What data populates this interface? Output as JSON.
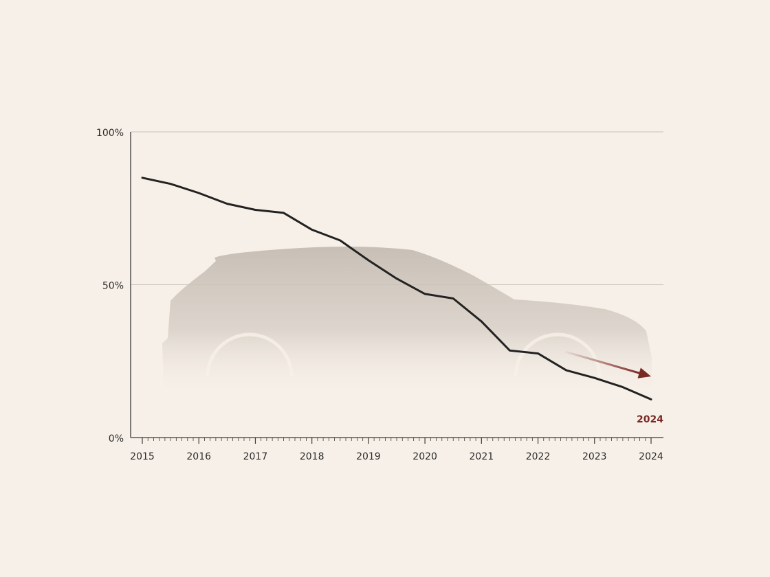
{
  "chart_data": {
    "type": "line",
    "title": "",
    "xlabel": "",
    "ylabel": "",
    "x_ticks": [
      "2015",
      "2016",
      "2017",
      "2018",
      "2019",
      "2020",
      "2021",
      "2022",
      "2023",
      "2024"
    ],
    "y_ticks": [
      "0%",
      "50%",
      "100%"
    ],
    "xlim": [
      2015,
      2024
    ],
    "ylim": [
      0,
      100
    ],
    "grid": true,
    "legend": "none",
    "series": [
      {
        "x": [
          2015.0,
          2015.5,
          2016.0,
          2016.5,
          2017.0,
          2017.5,
          2018.0,
          2018.5,
          2019.0,
          2019.5,
          2020.0,
          2020.5,
          2021.0,
          2021.5,
          2022.0,
          2022.5,
          2023.0,
          2023.5,
          2024.0
        ],
        "values": [
          85,
          83,
          80,
          76.5,
          74.5,
          73.5,
          68,
          64.5,
          58,
          52,
          47,
          45.5,
          38,
          28.5,
          27.5,
          22,
          19.5,
          16.5,
          12.5
        ],
        "color": "#222222"
      }
    ],
    "annotation": {
      "label": "2024",
      "color": "#7a2a24",
      "arrow_from": [
        2022.5,
        28
      ],
      "arrow_to": [
        2024.0,
        20
      ]
    },
    "background_image": "car-silhouette-icon",
    "colors": {
      "background": "#f7f0e8",
      "axis": "#3a3a3a",
      "grid": "#c9c2ba",
      "silhouette": "#c5bcb3"
    }
  }
}
